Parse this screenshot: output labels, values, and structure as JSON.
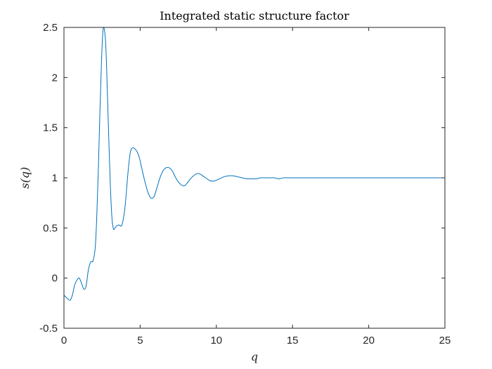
{
  "chart_data": {
    "type": "line",
    "title": "Integrated static structure factor",
    "xlabel": "q",
    "ylabel": "s(q)",
    "xlim": [
      0,
      25
    ],
    "ylim": [
      -0.5,
      2.5
    ],
    "xticks": [
      0,
      5,
      10,
      15,
      20,
      25
    ],
    "yticks": [
      -0.5,
      0,
      0.5,
      1,
      1.5,
      2,
      2.5
    ],
    "xtick_labels": [
      "0",
      "5",
      "10",
      "15",
      "20",
      "25"
    ],
    "ytick_labels": [
      "-0.5",
      "0",
      "0.5",
      "1",
      "1.5",
      "2",
      "2.5"
    ],
    "grid": false,
    "series": [
      {
        "color": "#0072BD",
        "x": [
          0,
          0.2,
          0.4,
          0.55,
          0.7,
          0.85,
          1.0,
          1.15,
          1.3,
          1.45,
          1.6,
          1.75,
          1.9,
          2.05,
          2.15,
          2.25,
          2.35,
          2.45,
          2.55,
          2.65,
          2.75,
          2.85,
          2.95,
          3.05,
          3.15,
          3.25,
          3.35,
          3.45,
          3.6,
          3.8,
          4.0,
          4.2,
          4.35,
          4.5,
          4.65,
          4.8,
          4.95,
          5.1,
          5.3,
          5.5,
          5.7,
          5.9,
          6.1,
          6.3,
          6.5,
          6.7,
          6.9,
          7.1,
          7.3,
          7.5,
          7.7,
          7.9,
          8.1,
          8.3,
          8.5,
          8.7,
          8.9,
          9.1,
          9.3,
          9.6,
          9.9,
          10.2,
          10.5,
          10.8,
          11.1,
          11.4,
          11.7,
          12.0,
          12.3,
          12.6,
          12.9,
          13.2,
          13.5,
          13.8,
          14.1,
          14.4,
          14.7,
          15.0,
          15.3,
          15.6,
          16.0,
          16.5,
          17.0,
          17.5,
          18.0,
          18.5,
          19.0,
          19.5,
          20.0,
          20.5,
          21.0,
          21.5,
          22.0,
          22.5,
          23.0,
          23.5,
          24.0,
          24.5,
          25.0
        ],
        "y": [
          -0.17,
          -0.2,
          -0.22,
          -0.17,
          -0.07,
          -0.02,
          0.0,
          -0.05,
          -0.11,
          -0.08,
          0.08,
          0.16,
          0.17,
          0.3,
          0.6,
          1.05,
          1.6,
          2.1,
          2.45,
          2.48,
          2.3,
          1.85,
          1.35,
          0.9,
          0.6,
          0.49,
          0.5,
          0.52,
          0.53,
          0.53,
          0.7,
          1.05,
          1.25,
          1.3,
          1.29,
          1.26,
          1.2,
          1.1,
          0.97,
          0.86,
          0.8,
          0.81,
          0.9,
          1.0,
          1.07,
          1.1,
          1.1,
          1.07,
          1.01,
          0.96,
          0.93,
          0.92,
          0.95,
          0.99,
          1.02,
          1.04,
          1.04,
          1.02,
          1.0,
          0.97,
          0.97,
          0.99,
          1.01,
          1.02,
          1.02,
          1.01,
          1.0,
          0.99,
          0.99,
          0.99,
          1.0,
          1.0,
          1.0,
          1.0,
          0.99,
          1.0,
          1.0,
          1.0,
          1.0,
          1.0,
          1.0,
          1.0,
          1.0,
          1.0,
          1.0,
          1.0,
          1.0,
          1.0,
          1.0,
          1.0,
          1.0,
          1.0,
          1.0,
          1.0,
          1.0,
          1.0,
          1.0,
          1.0,
          1.0
        ]
      }
    ]
  }
}
